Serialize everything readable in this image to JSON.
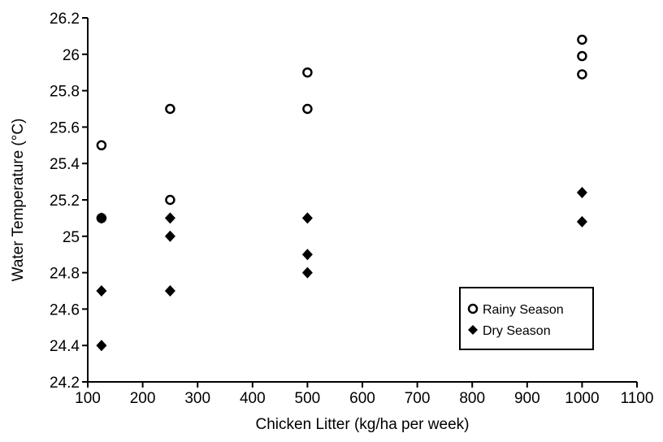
{
  "chart_data": {
    "type": "scatter",
    "title": "",
    "xlabel": "Chicken Litter (kg/ha per week)",
    "ylabel": "Water Temperature (°C)",
    "xlim": [
      100,
      1100
    ],
    "ylim": [
      24.2,
      26.2
    ],
    "xticks": [
      "100",
      "200",
      "300",
      "400",
      "500",
      "600",
      "700",
      "800",
      "900",
      "1000",
      "1100"
    ],
    "yticks": [
      "24.2",
      "24.4",
      "24.6",
      "24.8",
      "25",
      "25.2",
      "25.4",
      "25.6",
      "25.8",
      "26",
      "26.2"
    ],
    "grid": false,
    "legend_position": "lower-right",
    "series": [
      {
        "name": "Rainy Season",
        "marker": "open-circle",
        "points": [
          {
            "x": 125,
            "y": 25.5
          },
          {
            "x": 125,
            "y": 25.1
          },
          {
            "x": 250,
            "y": 25.7
          },
          {
            "x": 250,
            "y": 25.2
          },
          {
            "x": 500,
            "y": 25.9
          },
          {
            "x": 500,
            "y": 25.7
          },
          {
            "x": 1000,
            "y": 26.08
          },
          {
            "x": 1000,
            "y": 25.99
          },
          {
            "x": 1000,
            "y": 25.89
          }
        ]
      },
      {
        "name": "Dry Season",
        "marker": "filled-diamond",
        "points": [
          {
            "x": 125,
            "y": 25.1
          },
          {
            "x": 125,
            "y": 24.7
          },
          {
            "x": 125,
            "y": 24.4
          },
          {
            "x": 250,
            "y": 25.1
          },
          {
            "x": 250,
            "y": 25.0
          },
          {
            "x": 250,
            "y": 24.7
          },
          {
            "x": 500,
            "y": 25.1
          },
          {
            "x": 500,
            "y": 24.9
          },
          {
            "x": 500,
            "y": 24.8
          },
          {
            "x": 1000,
            "y": 25.24
          },
          {
            "x": 1000,
            "y": 25.08
          }
        ]
      }
    ]
  }
}
